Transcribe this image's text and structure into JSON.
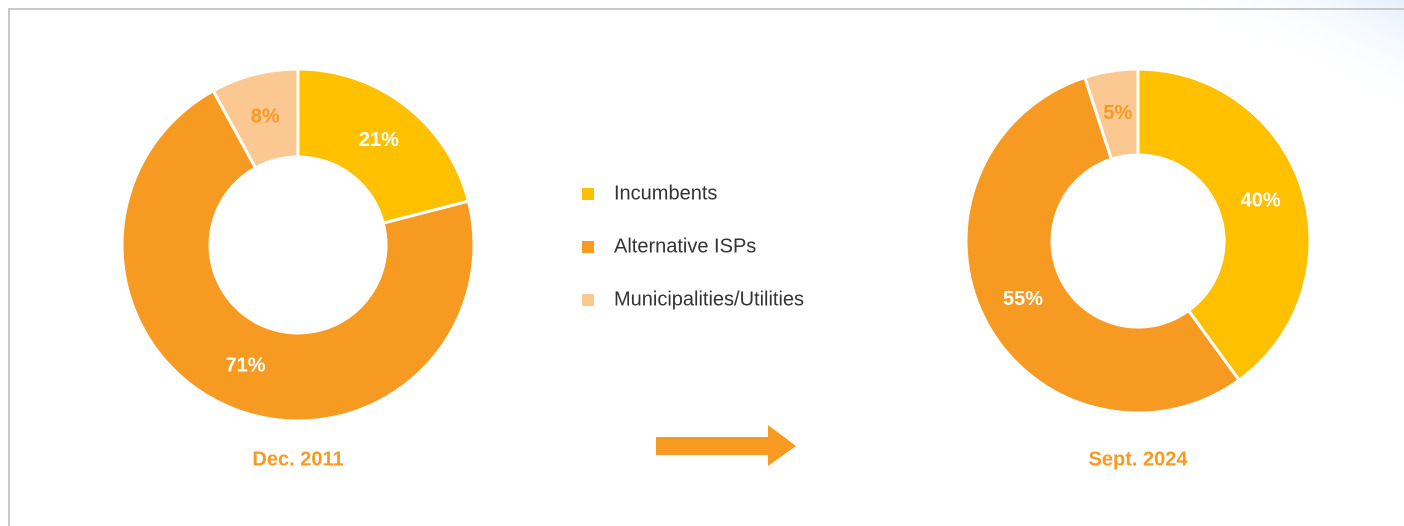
{
  "legend": {
    "labels": [
      "Incumbents",
      "Alternative ISPs",
      "Municipalities/Utilities"
    ],
    "colors": [
      "#FFC000",
      "#F79A22",
      "#FAC890"
    ]
  },
  "chart_data": [
    {
      "type": "pie",
      "title": "Dec. 2011",
      "values": [
        21,
        71,
        8
      ],
      "value_labels": [
        "21%",
        "71%",
        "8%"
      ]
    },
    {
      "type": "pie",
      "title": "Sept. 2024",
      "values": [
        40,
        55,
        5
      ],
      "value_labels": [
        "40%",
        "55%",
        "5%"
      ]
    }
  ]
}
